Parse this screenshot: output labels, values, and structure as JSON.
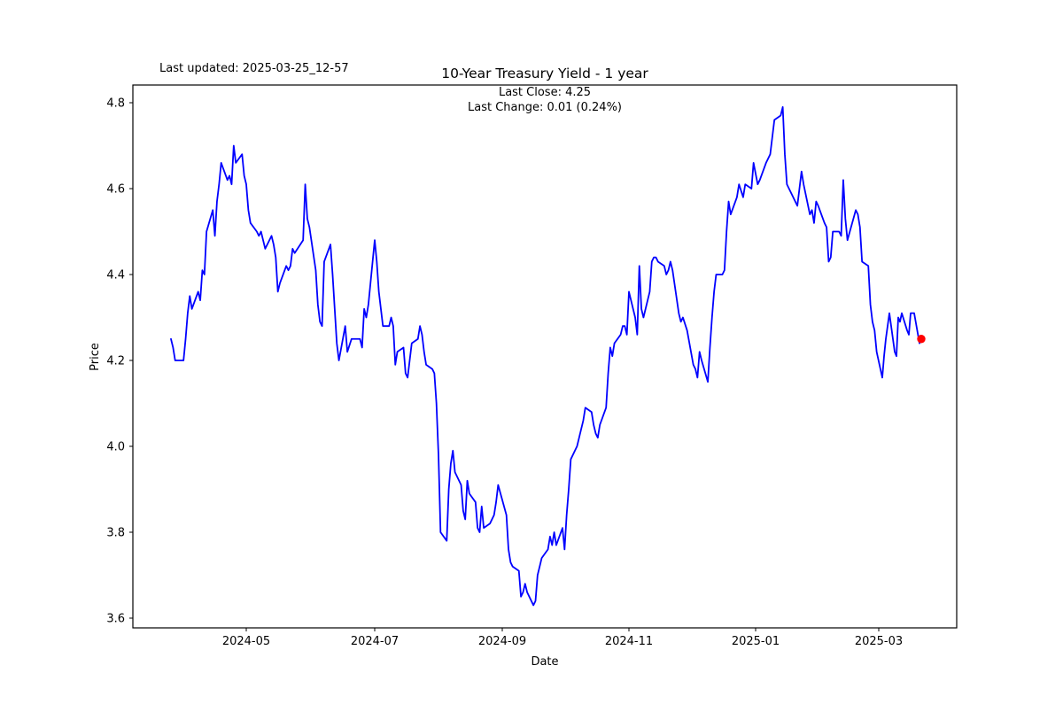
{
  "figure": {
    "last_updated": "Last updated: 2025-03-25_12-57",
    "title": "10-Year Treasury Yield - 1 year",
    "subtitle_line1": "Last Close: 4.25",
    "subtitle_line2": "Last Change: 0.01 (0.24%)",
    "xlabel": "Date",
    "ylabel": "Price"
  },
  "colors": {
    "line": "#0000ff",
    "marker": "#ff0000",
    "axis": "#000000",
    "background": "#ffffff",
    "text": "#000000"
  },
  "chart_data": {
    "type": "line",
    "title": "10-Year Treasury Yield - 1 year",
    "xlabel": "Date",
    "ylabel": "Price",
    "ylim": [
      3.58,
      4.84
    ],
    "x_range": [
      "2024-03-26",
      "2025-03-25"
    ],
    "grid": false,
    "legend": "none",
    "last_close": 4.25,
    "last_change": 0.01,
    "last_change_pct": "0.24%",
    "y_ticks": [
      3.6,
      3.8,
      4.0,
      4.2,
      4.4,
      4.6,
      4.8
    ],
    "x_ticks": [
      {
        "date": "2024-05-01",
        "label": "2024-05"
      },
      {
        "date": "2024-07-01",
        "label": "2024-07"
      },
      {
        "date": "2024-09-01",
        "label": "2024-09"
      },
      {
        "date": "2024-11-01",
        "label": "2024-11"
      },
      {
        "date": "2025-01-01",
        "label": "2025-01"
      },
      {
        "date": "2025-03-01",
        "label": "2025-03"
      }
    ],
    "marker": {
      "date": "2025-03-25",
      "value": 4.25,
      "color": "#ff0000"
    },
    "series": [
      {
        "name": "10-Year Treasury Yield",
        "color": "#0000ff",
        "points": [
          [
            "2024-03-26",
            4.25
          ],
          [
            "2024-03-27",
            4.23
          ],
          [
            "2024-03-28",
            4.2
          ],
          [
            "2024-04-01",
            4.2
          ],
          [
            "2024-04-02",
            4.25
          ],
          [
            "2024-04-03",
            4.31
          ],
          [
            "2024-04-04",
            4.35
          ],
          [
            "2024-04-05",
            4.32
          ],
          [
            "2024-04-08",
            4.36
          ],
          [
            "2024-04-09",
            4.34
          ],
          [
            "2024-04-10",
            4.41
          ],
          [
            "2024-04-11",
            4.4
          ],
          [
            "2024-04-12",
            4.5
          ],
          [
            "2024-04-15",
            4.55
          ],
          [
            "2024-04-16",
            4.49
          ],
          [
            "2024-04-17",
            4.57
          ],
          [
            "2024-04-18",
            4.61
          ],
          [
            "2024-04-19",
            4.66
          ],
          [
            "2024-04-22",
            4.62
          ],
          [
            "2024-04-23",
            4.63
          ],
          [
            "2024-04-24",
            4.61
          ],
          [
            "2024-04-25",
            4.7
          ],
          [
            "2024-04-26",
            4.66
          ],
          [
            "2024-04-29",
            4.68
          ],
          [
            "2024-04-30",
            4.63
          ],
          [
            "2024-05-01",
            4.61
          ],
          [
            "2024-05-02",
            4.55
          ],
          [
            "2024-05-03",
            4.52
          ],
          [
            "2024-05-06",
            4.5
          ],
          [
            "2024-05-07",
            4.49
          ],
          [
            "2024-05-08",
            4.5
          ],
          [
            "2024-05-09",
            4.48
          ],
          [
            "2024-05-10",
            4.46
          ],
          [
            "2024-05-13",
            4.49
          ],
          [
            "2024-05-14",
            4.47
          ],
          [
            "2024-05-15",
            4.44
          ],
          [
            "2024-05-16",
            4.36
          ],
          [
            "2024-05-17",
            4.38
          ],
          [
            "2024-05-20",
            4.42
          ],
          [
            "2024-05-21",
            4.41
          ],
          [
            "2024-05-22",
            4.42
          ],
          [
            "2024-05-23",
            4.46
          ],
          [
            "2024-05-24",
            4.45
          ],
          [
            "2024-05-28",
            4.48
          ],
          [
            "2024-05-29",
            4.61
          ],
          [
            "2024-05-30",
            4.53
          ],
          [
            "2024-05-31",
            4.51
          ],
          [
            "2024-06-03",
            4.41
          ],
          [
            "2024-06-04",
            4.33
          ],
          [
            "2024-06-05",
            4.29
          ],
          [
            "2024-06-06",
            4.28
          ],
          [
            "2024-06-07",
            4.43
          ],
          [
            "2024-06-10",
            4.47
          ],
          [
            "2024-06-11",
            4.4
          ],
          [
            "2024-06-12",
            4.32
          ],
          [
            "2024-06-13",
            4.24
          ],
          [
            "2024-06-14",
            4.2
          ],
          [
            "2024-06-17",
            4.28
          ],
          [
            "2024-06-18",
            4.22
          ],
          [
            "2024-06-20",
            4.25
          ],
          [
            "2024-06-21",
            4.25
          ],
          [
            "2024-06-24",
            4.25
          ],
          [
            "2024-06-25",
            4.23
          ],
          [
            "2024-06-26",
            4.32
          ],
          [
            "2024-06-27",
            4.3
          ],
          [
            "2024-06-28",
            4.33
          ],
          [
            "2024-07-01",
            4.48
          ],
          [
            "2024-07-02",
            4.43
          ],
          [
            "2024-07-03",
            4.36
          ],
          [
            "2024-07-05",
            4.28
          ],
          [
            "2024-07-08",
            4.28
          ],
          [
            "2024-07-09",
            4.3
          ],
          [
            "2024-07-10",
            4.28
          ],
          [
            "2024-07-11",
            4.19
          ],
          [
            "2024-07-12",
            4.22
          ],
          [
            "2024-07-15",
            4.23
          ],
          [
            "2024-07-16",
            4.17
          ],
          [
            "2024-07-17",
            4.16
          ],
          [
            "2024-07-18",
            4.2
          ],
          [
            "2024-07-19",
            4.24
          ],
          [
            "2024-07-22",
            4.25
          ],
          [
            "2024-07-23",
            4.28
          ],
          [
            "2024-07-24",
            4.26
          ],
          [
            "2024-07-25",
            4.22
          ],
          [
            "2024-07-26",
            4.19
          ],
          [
            "2024-07-29",
            4.18
          ],
          [
            "2024-07-30",
            4.17
          ],
          [
            "2024-07-31",
            4.1
          ],
          [
            "2024-08-01",
            3.98
          ],
          [
            "2024-08-02",
            3.8
          ],
          [
            "2024-08-05",
            3.78
          ],
          [
            "2024-08-06",
            3.9
          ],
          [
            "2024-08-07",
            3.96
          ],
          [
            "2024-08-08",
            3.99
          ],
          [
            "2024-08-09",
            3.94
          ],
          [
            "2024-08-12",
            3.91
          ],
          [
            "2024-08-13",
            3.85
          ],
          [
            "2024-08-14",
            3.83
          ],
          [
            "2024-08-15",
            3.92
          ],
          [
            "2024-08-16",
            3.89
          ],
          [
            "2024-08-19",
            3.87
          ],
          [
            "2024-08-20",
            3.81
          ],
          [
            "2024-08-21",
            3.8
          ],
          [
            "2024-08-22",
            3.86
          ],
          [
            "2024-08-23",
            3.81
          ],
          [
            "2024-08-26",
            3.82
          ],
          [
            "2024-08-27",
            3.83
          ],
          [
            "2024-08-28",
            3.84
          ],
          [
            "2024-08-29",
            3.87
          ],
          [
            "2024-08-30",
            3.91
          ],
          [
            "2024-09-03",
            3.84
          ],
          [
            "2024-09-04",
            3.76
          ],
          [
            "2024-09-05",
            3.73
          ],
          [
            "2024-09-06",
            3.72
          ],
          [
            "2024-09-09",
            3.71
          ],
          [
            "2024-09-10",
            3.65
          ],
          [
            "2024-09-11",
            3.66
          ],
          [
            "2024-09-12",
            3.68
          ],
          [
            "2024-09-13",
            3.66
          ],
          [
            "2024-09-16",
            3.63
          ],
          [
            "2024-09-17",
            3.64
          ],
          [
            "2024-09-18",
            3.7
          ],
          [
            "2024-09-19",
            3.72
          ],
          [
            "2024-09-20",
            3.74
          ],
          [
            "2024-09-23",
            3.76
          ],
          [
            "2024-09-24",
            3.79
          ],
          [
            "2024-09-25",
            3.77
          ],
          [
            "2024-09-26",
            3.8
          ],
          [
            "2024-09-27",
            3.77
          ],
          [
            "2024-09-30",
            3.81
          ],
          [
            "2024-10-01",
            3.76
          ],
          [
            "2024-10-02",
            3.84
          ],
          [
            "2024-10-03",
            3.9
          ],
          [
            "2024-10-04",
            3.97
          ],
          [
            "2024-10-07",
            4.0
          ],
          [
            "2024-10-08",
            4.02
          ],
          [
            "2024-10-09",
            4.04
          ],
          [
            "2024-10-10",
            4.06
          ],
          [
            "2024-10-11",
            4.09
          ],
          [
            "2024-10-14",
            4.08
          ],
          [
            "2024-10-15",
            4.05
          ],
          [
            "2024-10-16",
            4.03
          ],
          [
            "2024-10-17",
            4.02
          ],
          [
            "2024-10-18",
            4.05
          ],
          [
            "2024-10-21",
            4.09
          ],
          [
            "2024-10-22",
            4.17
          ],
          [
            "2024-10-23",
            4.23
          ],
          [
            "2024-10-24",
            4.21
          ],
          [
            "2024-10-25",
            4.24
          ],
          [
            "2024-10-28",
            4.26
          ],
          [
            "2024-10-29",
            4.28
          ],
          [
            "2024-10-30",
            4.28
          ],
          [
            "2024-10-31",
            4.26
          ],
          [
            "2024-11-01",
            4.36
          ],
          [
            "2024-11-04",
            4.3
          ],
          [
            "2024-11-05",
            4.26
          ],
          [
            "2024-11-06",
            4.42
          ],
          [
            "2024-11-07",
            4.32
          ],
          [
            "2024-11-08",
            4.3
          ],
          [
            "2024-11-11",
            4.36
          ],
          [
            "2024-11-12",
            4.43
          ],
          [
            "2024-11-13",
            4.44
          ],
          [
            "2024-11-14",
            4.44
          ],
          [
            "2024-11-15",
            4.43
          ],
          [
            "2024-11-18",
            4.42
          ],
          [
            "2024-11-19",
            4.4
          ],
          [
            "2024-11-20",
            4.41
          ],
          [
            "2024-11-21",
            4.43
          ],
          [
            "2024-11-22",
            4.41
          ],
          [
            "2024-11-25",
            4.31
          ],
          [
            "2024-11-26",
            4.29
          ],
          [
            "2024-11-27",
            4.3
          ],
          [
            "2024-11-29",
            4.27
          ],
          [
            "2024-12-02",
            4.19
          ],
          [
            "2024-12-03",
            4.18
          ],
          [
            "2024-12-04",
            4.16
          ],
          [
            "2024-12-05",
            4.22
          ],
          [
            "2024-12-06",
            4.2
          ],
          [
            "2024-12-09",
            4.15
          ],
          [
            "2024-12-10",
            4.23
          ],
          [
            "2024-12-11",
            4.3
          ],
          [
            "2024-12-12",
            4.36
          ],
          [
            "2024-12-13",
            4.4
          ],
          [
            "2024-12-16",
            4.4
          ],
          [
            "2024-12-17",
            4.41
          ],
          [
            "2024-12-18",
            4.5
          ],
          [
            "2024-12-19",
            4.57
          ],
          [
            "2024-12-20",
            4.54
          ],
          [
            "2024-12-23",
            4.58
          ],
          [
            "2024-12-24",
            4.61
          ],
          [
            "2024-12-26",
            4.58
          ],
          [
            "2024-12-27",
            4.61
          ],
          [
            "2024-12-30",
            4.6
          ],
          [
            "2024-12-31",
            4.66
          ],
          [
            "2025-01-02",
            4.61
          ],
          [
            "2025-01-03",
            4.62
          ],
          [
            "2025-01-06",
            4.66
          ],
          [
            "2025-01-07",
            4.67
          ],
          [
            "2025-01-08",
            4.68
          ],
          [
            "2025-01-10",
            4.76
          ],
          [
            "2025-01-13",
            4.77
          ],
          [
            "2025-01-14",
            4.79
          ],
          [
            "2025-01-15",
            4.68
          ],
          [
            "2025-01-16",
            4.61
          ],
          [
            "2025-01-17",
            4.6
          ],
          [
            "2025-01-21",
            4.56
          ],
          [
            "2025-01-22",
            4.6
          ],
          [
            "2025-01-23",
            4.64
          ],
          [
            "2025-01-24",
            4.61
          ],
          [
            "2025-01-27",
            4.54
          ],
          [
            "2025-01-28",
            4.55
          ],
          [
            "2025-01-29",
            4.52
          ],
          [
            "2025-01-30",
            4.57
          ],
          [
            "2025-01-31",
            4.56
          ],
          [
            "2025-02-03",
            4.52
          ],
          [
            "2025-02-04",
            4.51
          ],
          [
            "2025-02-05",
            4.43
          ],
          [
            "2025-02-06",
            4.44
          ],
          [
            "2025-02-07",
            4.5
          ],
          [
            "2025-02-10",
            4.5
          ],
          [
            "2025-02-11",
            4.49
          ],
          [
            "2025-02-12",
            4.62
          ],
          [
            "2025-02-13",
            4.53
          ],
          [
            "2025-02-14",
            4.48
          ],
          [
            "2025-02-18",
            4.55
          ],
          [
            "2025-02-19",
            4.54
          ],
          [
            "2025-02-20",
            4.51
          ],
          [
            "2025-02-21",
            4.43
          ],
          [
            "2025-02-24",
            4.42
          ],
          [
            "2025-02-25",
            4.33
          ],
          [
            "2025-02-26",
            4.29
          ],
          [
            "2025-02-27",
            4.27
          ],
          [
            "2025-02-28",
            4.22
          ],
          [
            "2025-03-03",
            4.16
          ],
          [
            "2025-03-04",
            4.21
          ],
          [
            "2025-03-05",
            4.25
          ],
          [
            "2025-03-06",
            4.28
          ],
          [
            "2025-03-07",
            4.31
          ],
          [
            "2025-03-10",
            4.22
          ],
          [
            "2025-03-11",
            4.21
          ],
          [
            "2025-03-12",
            4.3
          ],
          [
            "2025-03-13",
            4.29
          ],
          [
            "2025-03-14",
            4.31
          ],
          [
            "2025-03-17",
            4.27
          ],
          [
            "2025-03-18",
            4.26
          ],
          [
            "2025-03-19",
            4.31
          ],
          [
            "2025-03-20",
            4.31
          ],
          [
            "2025-03-21",
            4.31
          ],
          [
            "2025-03-24",
            4.24
          ],
          [
            "2025-03-25",
            4.25
          ]
        ]
      }
    ]
  }
}
